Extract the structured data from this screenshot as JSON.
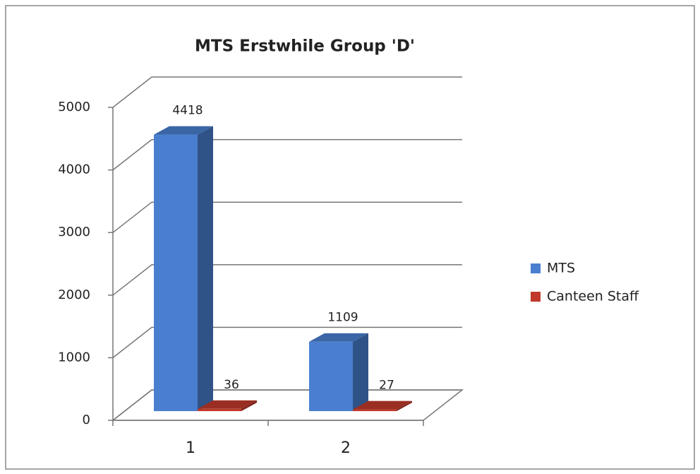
{
  "chart_data": {
    "type": "bar3d",
    "title": "MTS Erstwhile Group 'D'",
    "categories": [
      "1",
      "2"
    ],
    "series": [
      {
        "name": "MTS",
        "color": "#4a7fcf",
        "values": [
          4418,
          1109
        ]
      },
      {
        "name": "Canteen Staff",
        "color": "#c0392b",
        "values": [
          36,
          27
        ]
      }
    ],
    "ylim": [
      0,
      5000
    ],
    "yticks": [
      0,
      1000,
      2000,
      3000,
      4000,
      5000
    ],
    "grid": true,
    "legend": "right"
  }
}
